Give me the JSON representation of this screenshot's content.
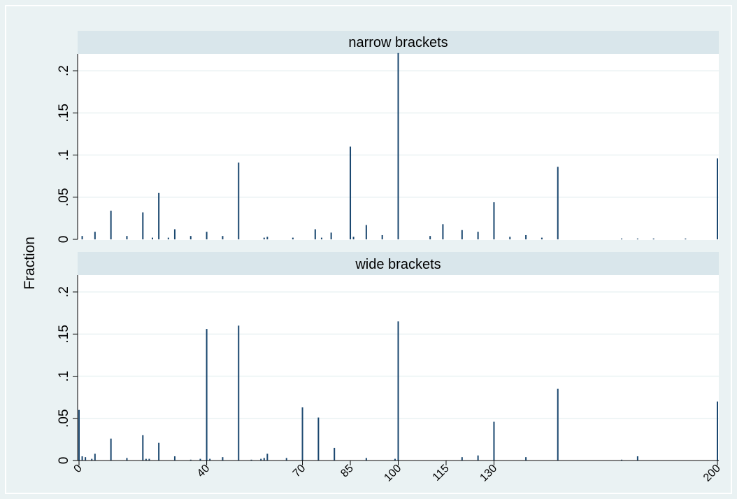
{
  "figure": {
    "ylabel": "Fraction"
  },
  "colors": {
    "outer_background": "#eaf2f3",
    "plot_background": "#ffffff",
    "strip_background": "#d9e6eb",
    "bar_color": "#1a476f",
    "gridline_color": "#eaf2f3"
  },
  "chart_data": {
    "type": "bar",
    "xlim": [
      0,
      200
    ],
    "ylim": [
      0,
      0.22
    ],
    "x_ticks": [
      0,
      40,
      70,
      85,
      100,
      115,
      130,
      200
    ],
    "y_ticks": [
      0,
      0.05,
      0.1,
      0.15,
      0.2
    ],
    "y_tick_labels": [
      "0",
      ".05",
      ".1",
      ".15",
      ".2"
    ],
    "ylabel": "Fraction",
    "grid": true,
    "panels": [
      {
        "name": "narrow brackets",
        "x": [
          1,
          5,
          10,
          15,
          20,
          23,
          25,
          28,
          30,
          35,
          40,
          45,
          50,
          58,
          59,
          67,
          74,
          76,
          79,
          85,
          86,
          90,
          95,
          100,
          110,
          114,
          120,
          125,
          130,
          135,
          140,
          145,
          150,
          170,
          175,
          180,
          190,
          200
        ],
        "values": [
          0.004,
          0.009,
          0.034,
          0.004,
          0.032,
          0.002,
          0.055,
          0.002,
          0.012,
          0.004,
          0.009,
          0.004,
          0.091,
          0.002,
          0.003,
          0.002,
          0.012,
          0.002,
          0.008,
          0.11,
          0.003,
          0.017,
          0.005,
          0.221,
          0.004,
          0.018,
          0.011,
          0.009,
          0.044,
          0.003,
          0.005,
          0.002,
          0.086,
          0.001,
          0.001,
          0.001,
          0.001,
          0.096
        ]
      },
      {
        "name": "wide brackets",
        "x": [
          0,
          1,
          2,
          4,
          5,
          10,
          15,
          20,
          21,
          22,
          25,
          30,
          35,
          38,
          40,
          41,
          45,
          50,
          54,
          57,
          58,
          59,
          65,
          70,
          75,
          80,
          90,
          99,
          100,
          120,
          125,
          130,
          140,
          150,
          170,
          175,
          200
        ],
        "values": [
          0.06,
          0.005,
          0.004,
          0.002,
          0.008,
          0.026,
          0.003,
          0.03,
          0.002,
          0.002,
          0.021,
          0.005,
          0.001,
          0.002,
          0.156,
          0.002,
          0.004,
          0.16,
          0.001,
          0.002,
          0.003,
          0.008,
          0.003,
          0.063,
          0.051,
          0.015,
          0.003,
          0.002,
          0.165,
          0.004,
          0.006,
          0.046,
          0.004,
          0.085,
          0.001,
          0.005,
          0.07
        ]
      }
    ]
  }
}
